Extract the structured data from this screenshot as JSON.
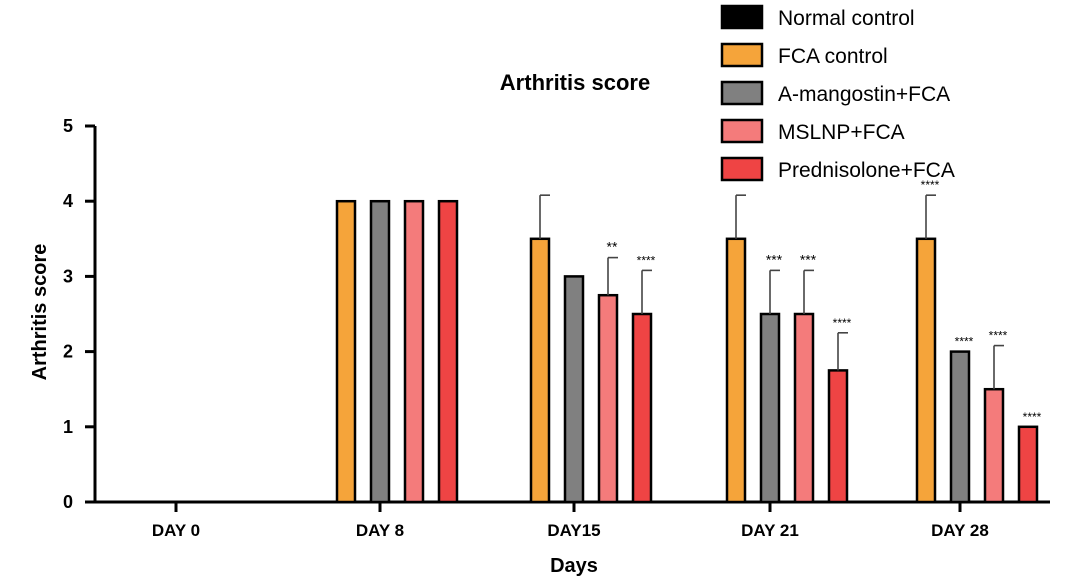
{
  "chart_data": {
    "type": "bar",
    "title": "Arthritis score",
    "xlabel": "Days",
    "ylabel": "Arthritis score",
    "ylim": [
      0,
      5
    ],
    "yticks": [
      "0",
      "1",
      "2",
      "3",
      "4",
      "5"
    ],
    "categories": [
      "DAY 0",
      "DAY 8",
      "DAY15",
      "DAY 21",
      "DAY 28"
    ],
    "series": [
      {
        "name": "Normal control",
        "color": "#000000",
        "values": [
          0,
          0,
          0,
          0,
          0
        ],
        "errors": [
          0,
          0,
          0,
          0,
          0
        ],
        "significance": [
          "",
          "",
          "",
          "",
          ""
        ]
      },
      {
        "name": "FCA control",
        "color": "#f5a43a",
        "values": [
          0,
          4,
          3.5,
          3.5,
          3.5
        ],
        "errors": [
          0,
          0,
          0.58,
          0.58,
          0.58
        ],
        "significance": [
          "",
          "",
          "",
          "",
          "****"
        ]
      },
      {
        "name": "A-mangostin+FCA",
        "color": "#808080",
        "values": [
          0,
          4,
          3.0,
          2.5,
          2.0
        ],
        "errors": [
          0,
          0,
          0,
          0.58,
          0
        ],
        "significance": [
          "",
          "",
          "",
          "***",
          "****"
        ]
      },
      {
        "name": "MSLNP+FCA",
        "color": "#f47b7b",
        "values": [
          0,
          4,
          2.75,
          2.5,
          1.5
        ],
        "errors": [
          0,
          0,
          0.5,
          0.58,
          0.58
        ],
        "significance": [
          "",
          "",
          "**",
          "***",
          "****"
        ]
      },
      {
        "name": "Prednisolone+FCA",
        "color": "#ef4444",
        "values": [
          0,
          4,
          2.5,
          1.75,
          1.0
        ],
        "errors": [
          0,
          0,
          0.58,
          0.5,
          0
        ],
        "significance": [
          "",
          "",
          "****",
          "****",
          "****"
        ]
      }
    ],
    "grid": false,
    "legend": "top-right"
  }
}
